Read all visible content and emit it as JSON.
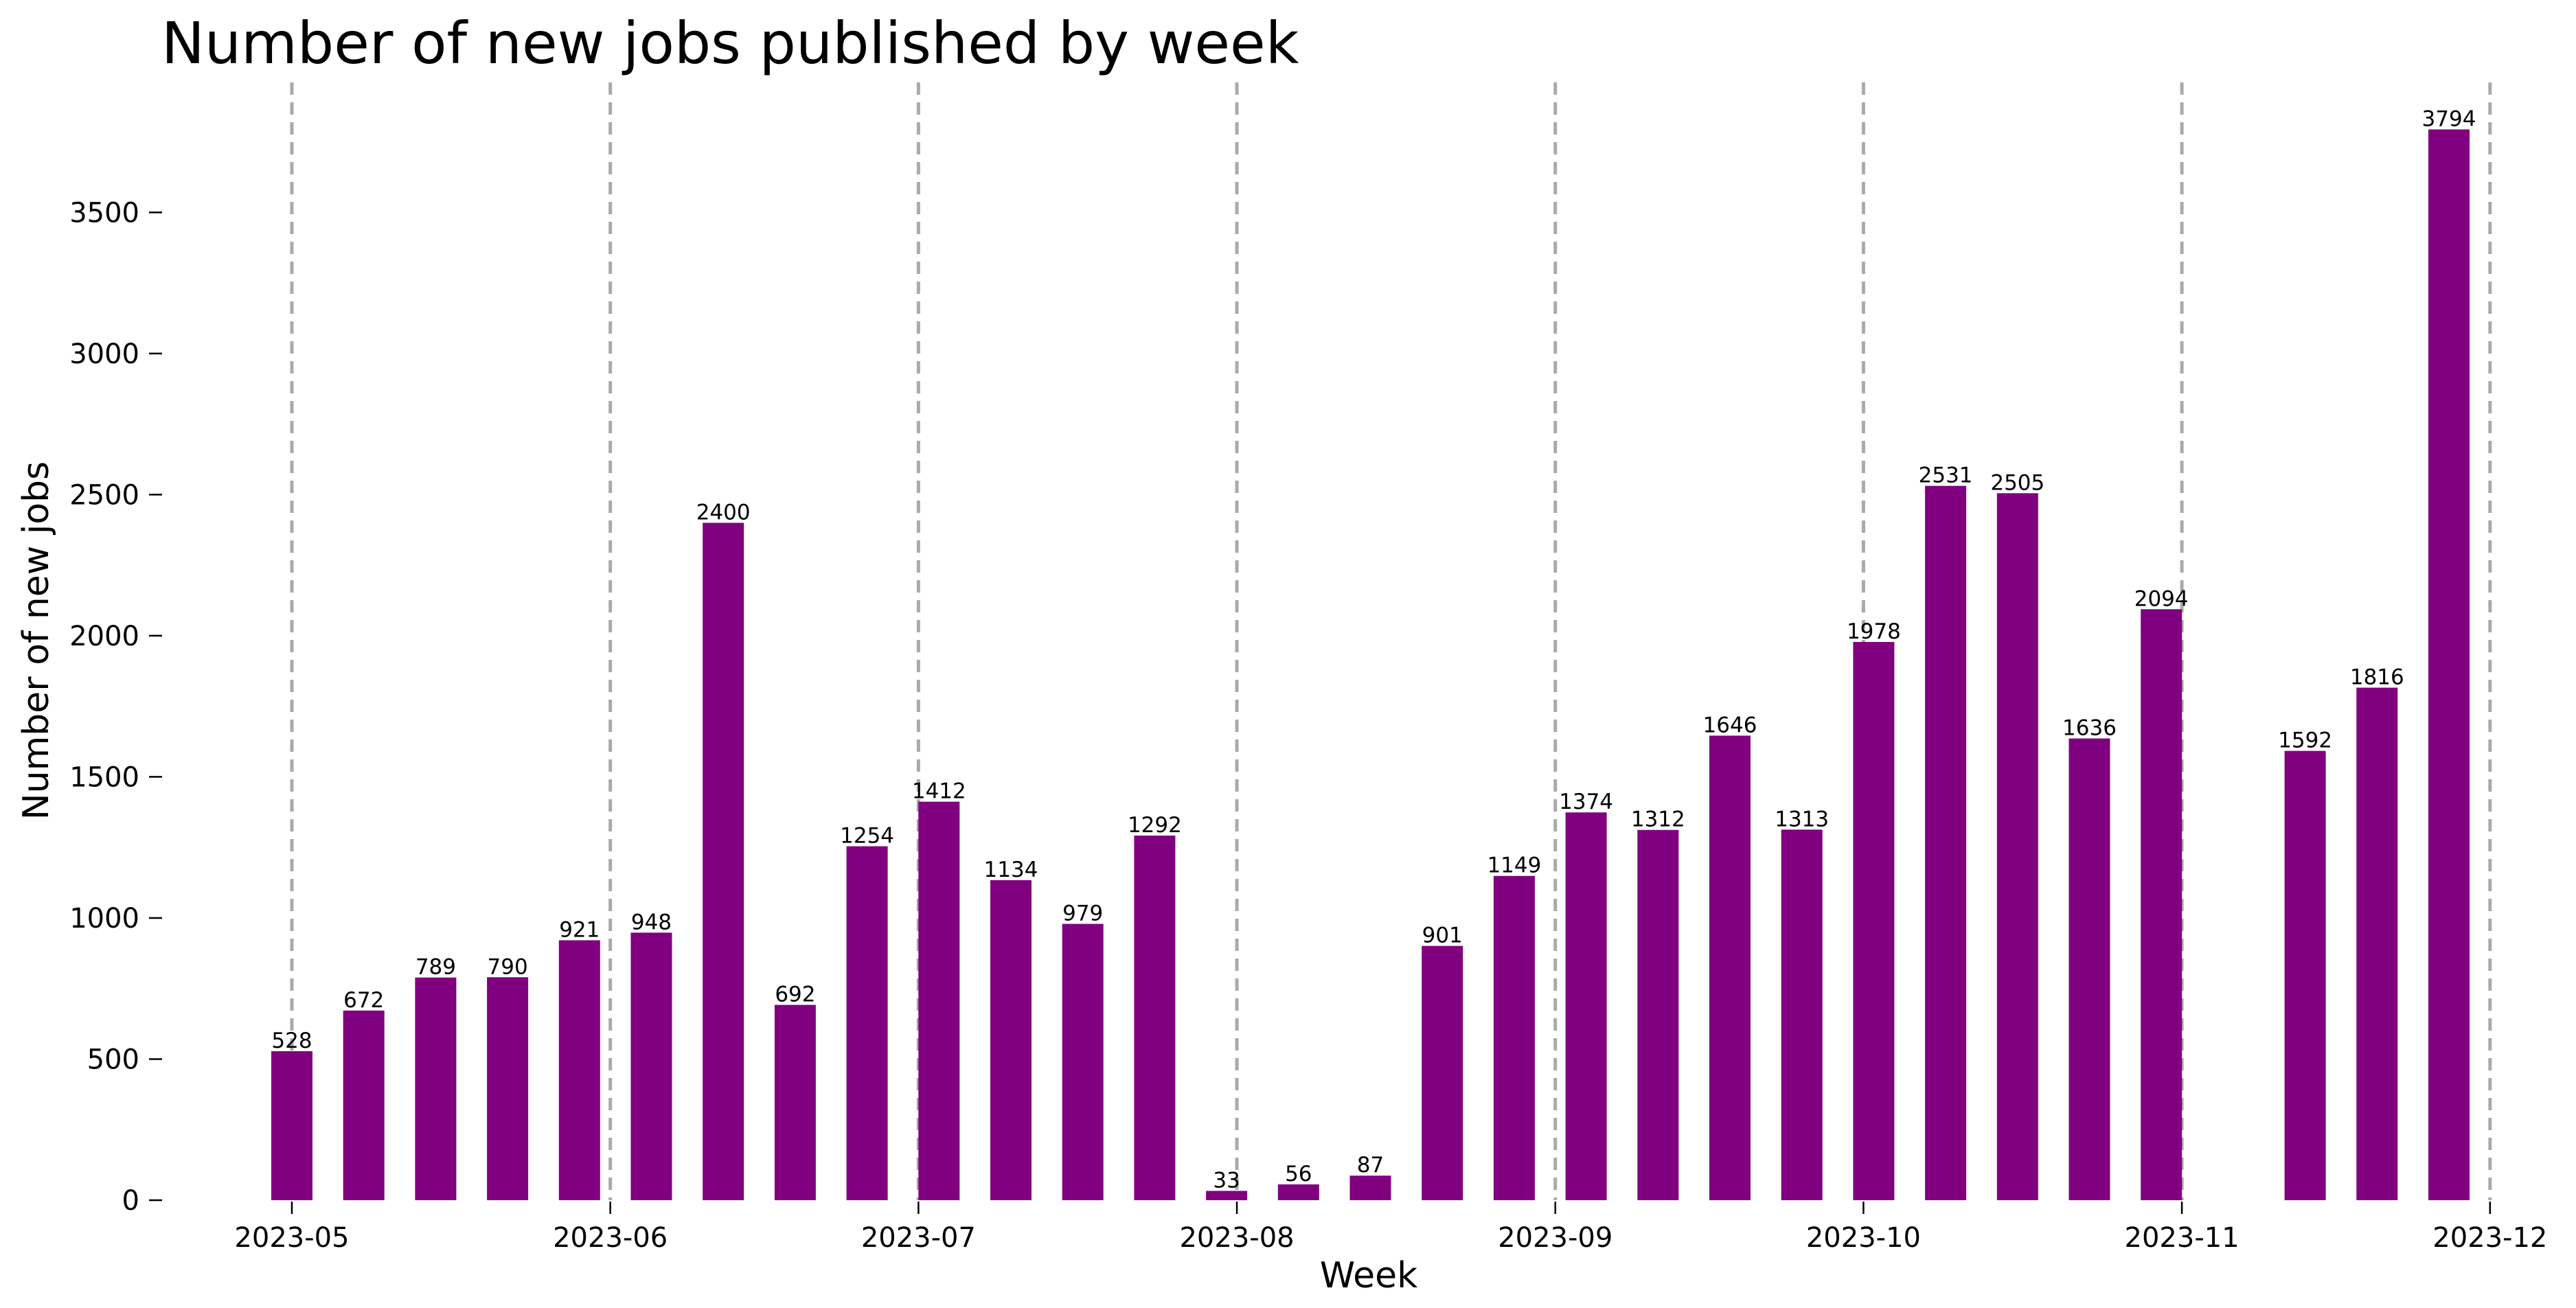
{
  "chart_data": {
    "type": "bar",
    "title": "Number of new jobs published by week",
    "xlabel": "Week",
    "ylabel": "Number of new jobs",
    "ylim": [
      0,
      3900
    ],
    "yticks": [
      0,
      500,
      1000,
      1500,
      2000,
      2500,
      3000,
      3500
    ],
    "bar_color": "#800080",
    "grid_line_color": "#aaaaaa",
    "month_markers": [
      {
        "label": "2023-05",
        "date": "2023-05-01"
      },
      {
        "label": "2023-06",
        "date": "2023-06-01"
      },
      {
        "label": "2023-07",
        "date": "2023-07-01"
      },
      {
        "label": "2023-08",
        "date": "2023-08-01"
      },
      {
        "label": "2023-09",
        "date": "2023-09-01"
      },
      {
        "label": "2023-10",
        "date": "2023-10-01"
      },
      {
        "label": "2023-11",
        "date": "2023-11-01"
      },
      {
        "label": "2023-12",
        "date": "2023-12-01"
      }
    ],
    "x": [
      "2023-05-01",
      "2023-05-08",
      "2023-05-15",
      "2023-05-22",
      "2023-05-29",
      "2023-06-05",
      "2023-06-12",
      "2023-06-19",
      "2023-06-26",
      "2023-07-03",
      "2023-07-10",
      "2023-07-17",
      "2023-07-24",
      "2023-07-31",
      "2023-08-07",
      "2023-08-14",
      "2023-08-21",
      "2023-08-28",
      "2023-09-04",
      "2023-09-11",
      "2023-09-18",
      "2023-09-25",
      "2023-10-02",
      "2023-10-09",
      "2023-10-16",
      "2023-10-23",
      "2023-10-30",
      "2023-11-13",
      "2023-11-20",
      "2023-11-27"
    ],
    "values": [
      528,
      672,
      789,
      790,
      921,
      948,
      2400,
      692,
      1254,
      1412,
      1134,
      979,
      1292,
      33,
      56,
      87,
      901,
      1149,
      1374,
      1312,
      1646,
      1313,
      1978,
      2531,
      2505,
      1636,
      2094,
      1592,
      1816,
      3794
    ]
  }
}
